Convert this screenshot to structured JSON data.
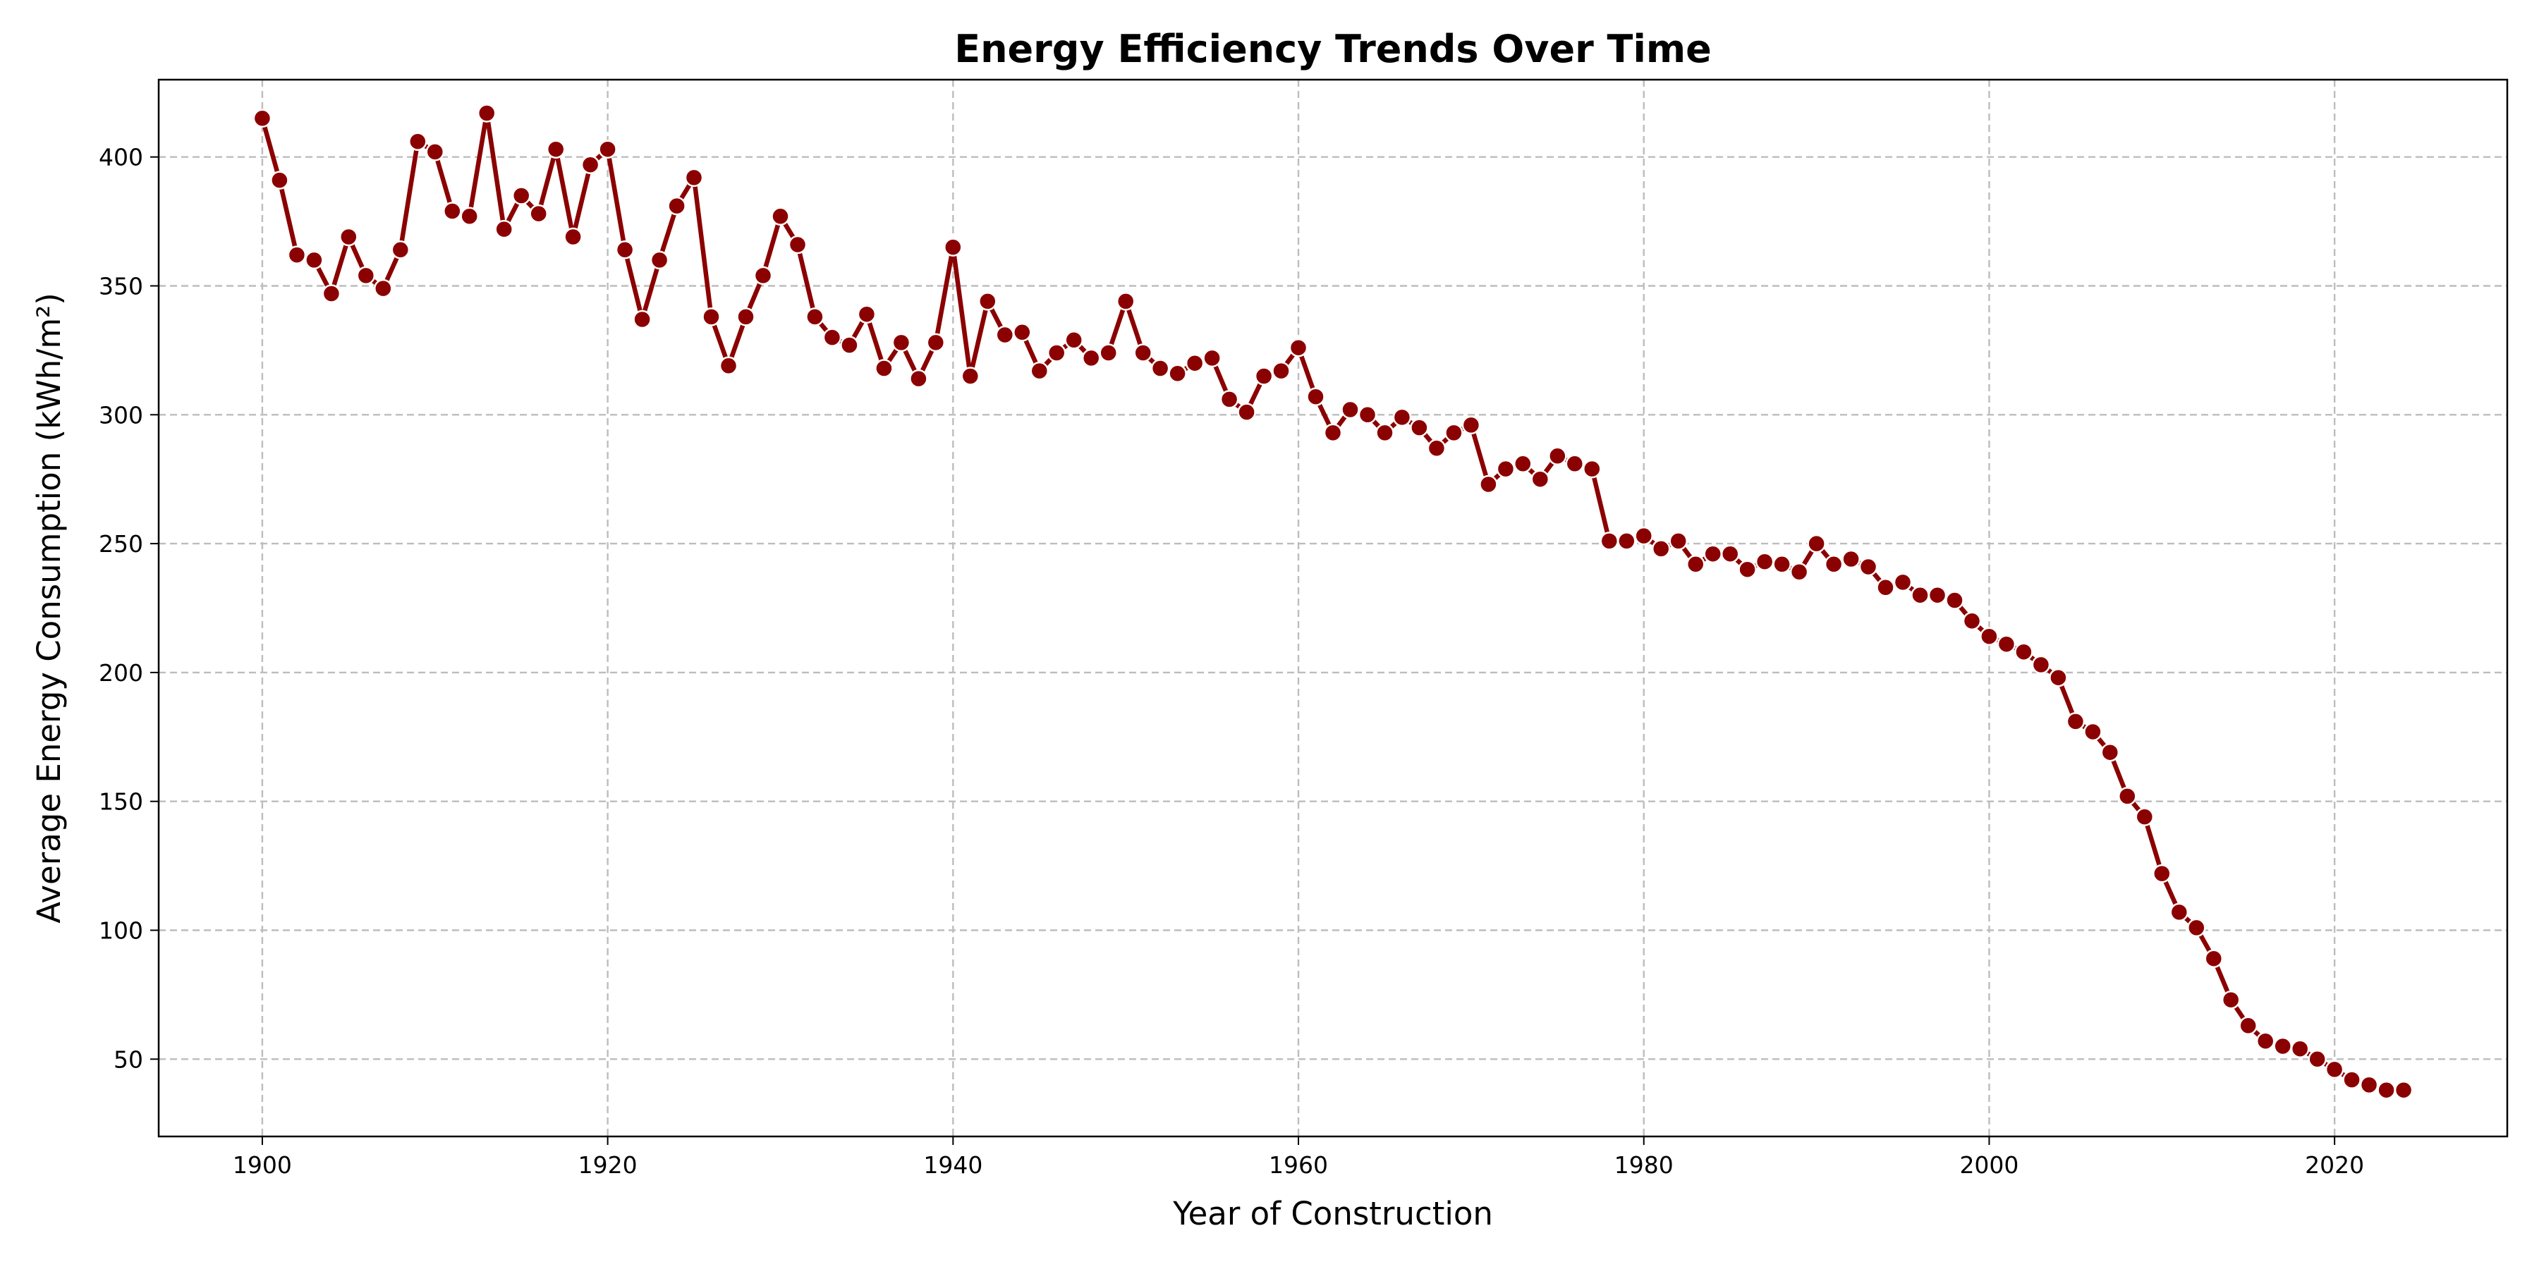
{
  "chart_data": {
    "type": "line",
    "title": "Energy Efficiency Trends Over Time",
    "xlabel": "Year of Construction",
    "ylabel": "Average Energy Consumption (kWh/m²)",
    "xlim": [
      1894,
      2030
    ],
    "ylim": [
      20,
      430
    ],
    "xticks": [
      1900,
      1920,
      1940,
      1960,
      1980,
      2000,
      2020
    ],
    "yticks": [
      50,
      100,
      150,
      200,
      250,
      300,
      350,
      400
    ],
    "grid": true,
    "line_color": "#8b0000",
    "marker_edge_color": "#ffffff",
    "series": [
      {
        "x": [
          1900,
          1901,
          1902,
          1903,
          1904,
          1905,
          1906,
          1907,
          1908,
          1909,
          1910,
          1911,
          1912,
          1913,
          1914,
          1915,
          1916,
          1917,
          1918,
          1919,
          1920,
          1921,
          1922,
          1923,
          1924,
          1925,
          1926,
          1927,
          1928,
          1929,
          1930,
          1931,
          1932,
          1933,
          1934,
          1935,
          1936,
          1937,
          1938,
          1939,
          1940,
          1941,
          1942,
          1943,
          1944,
          1945,
          1946,
          1947,
          1948,
          1949,
          1950,
          1951,
          1952,
          1953,
          1954,
          1955,
          1956,
          1957,
          1958,
          1959,
          1960,
          1961,
          1962,
          1963,
          1964,
          1965,
          1966,
          1967,
          1968,
          1969,
          1970,
          1971,
          1972,
          1973,
          1974,
          1975,
          1976,
          1977,
          1978,
          1979,
          1980,
          1981,
          1982,
          1983,
          1984,
          1985,
          1986,
          1987,
          1988,
          1989,
          1990,
          1991,
          1992,
          1993,
          1994,
          1995,
          1996,
          1997,
          1998,
          1999,
          2000,
          2001,
          2002,
          2003,
          2004,
          2005,
          2006,
          2007,
          2008,
          2009,
          2010,
          2011,
          2012,
          2013,
          2014,
          2015,
          2016,
          2017,
          2018,
          2019,
          2020,
          2021,
          2022,
          2023,
          2024
        ],
        "values": [
          415,
          391,
          362,
          360,
          347,
          369,
          354,
          349,
          364,
          406,
          402,
          379,
          377,
          417,
          372,
          385,
          378,
          403,
          369,
          397,
          403,
          364,
          337,
          360,
          381,
          392,
          338,
          319,
          338,
          354,
          377,
          366,
          338,
          330,
          327,
          339,
          318,
          328,
          314,
          328,
          365,
          315,
          344,
          331,
          332,
          317,
          324,
          329,
          322,
          324,
          344,
          324,
          318,
          316,
          320,
          322,
          306,
          301,
          315,
          317,
          326,
          307,
          293,
          302,
          300,
          293,
          299,
          295,
          287,
          293,
          296,
          273,
          279,
          281,
          275,
          284,
          281,
          279,
          251,
          251,
          253,
          248,
          251,
          242,
          246,
          246,
          240,
          243,
          242,
          239,
          250,
          242,
          244,
          241,
          233,
          235,
          230,
          230,
          228,
          220,
          214,
          211,
          208,
          203,
          198,
          181,
          177,
          169,
          152,
          144,
          122,
          107,
          101,
          89,
          73,
          63,
          57,
          55,
          54,
          50,
          46,
          42,
          40,
          38,
          38
        ]
      }
    ]
  }
}
